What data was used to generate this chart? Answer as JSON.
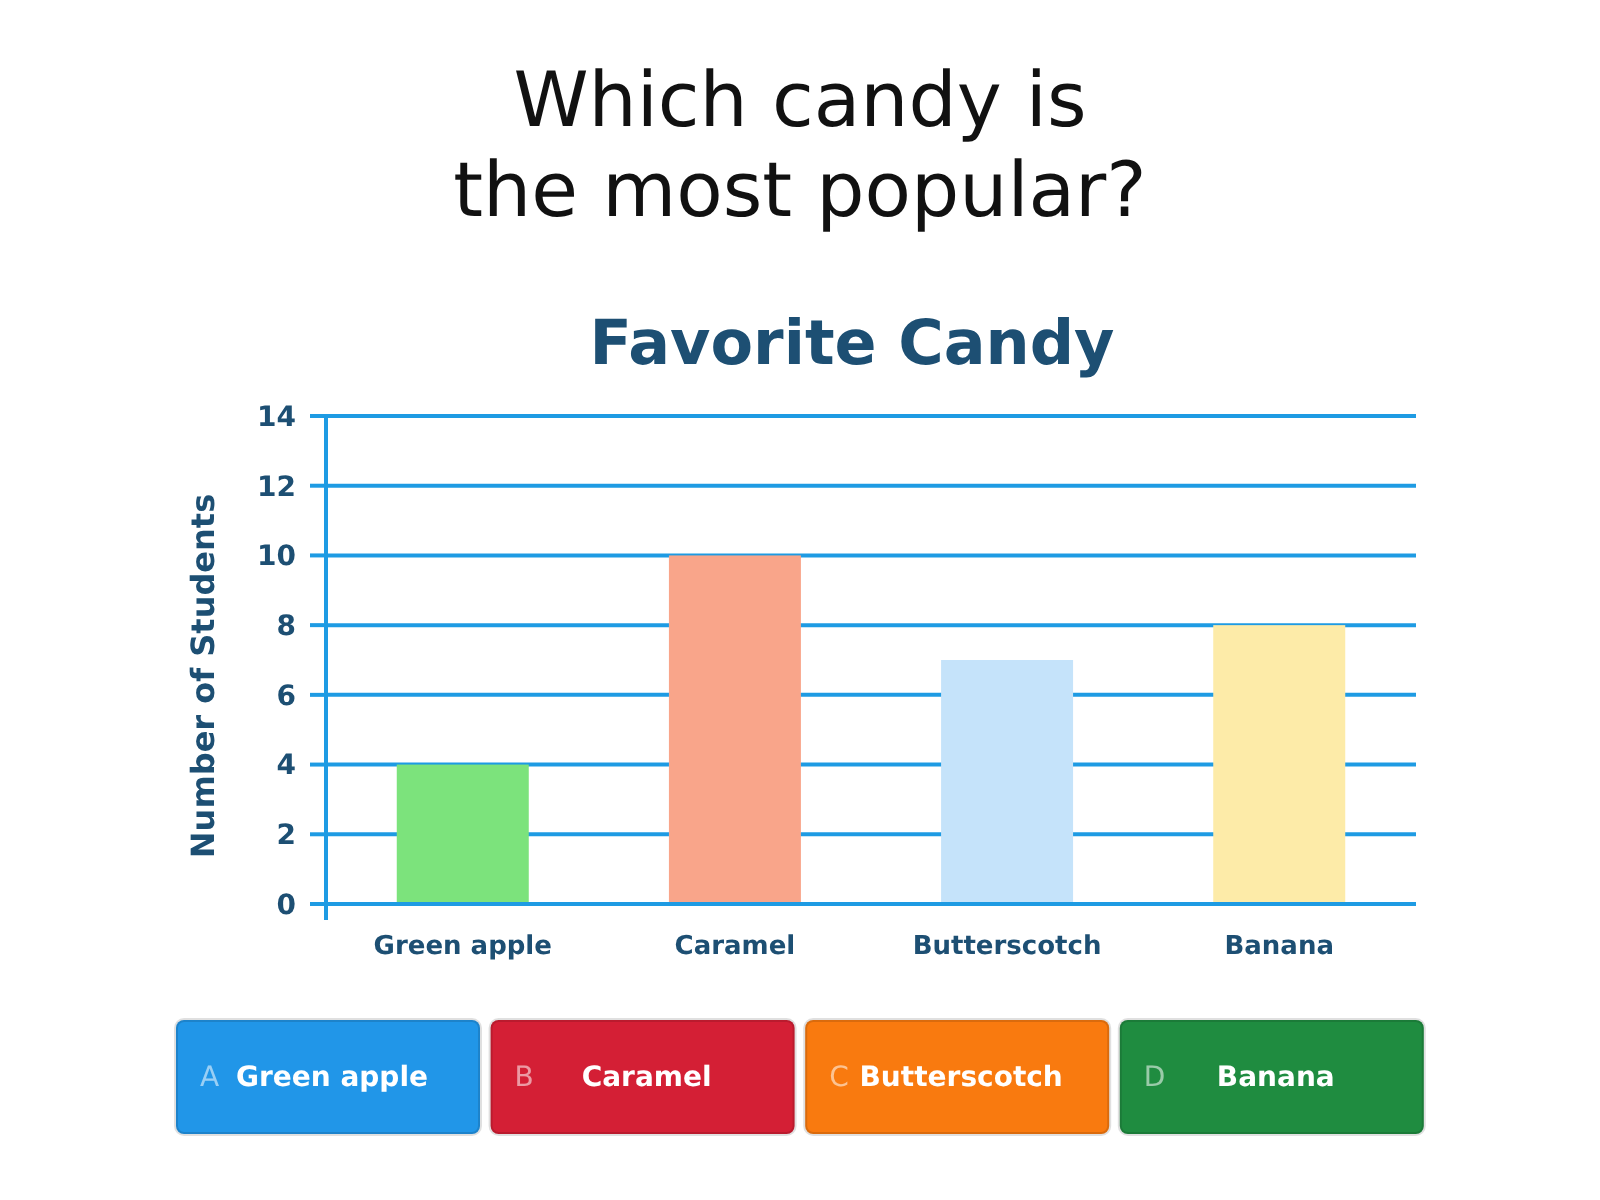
{
  "chart_data": {
    "type": "bar",
    "title": "Favorite Candy",
    "ylabel": "Number of Students",
    "categories": [
      "Green apple",
      "Caramel",
      "Butterscotch",
      "Banana"
    ],
    "values": [
      4,
      10,
      7,
      8
    ],
    "colors": [
      "#7ce37c",
      "#f9a58a",
      "#c5e3fa",
      "#fdeba8"
    ],
    "ylim": [
      0,
      14
    ],
    "yticks": [
      0,
      2,
      4,
      6,
      8,
      10,
      12,
      14
    ],
    "grid": "y",
    "annotations": [
      "Which candy is the most popular?",
      "A",
      "Green apple",
      "B",
      "Caramel",
      "C",
      "Butterscotch",
      "D",
      "Banana"
    ]
  }
}
